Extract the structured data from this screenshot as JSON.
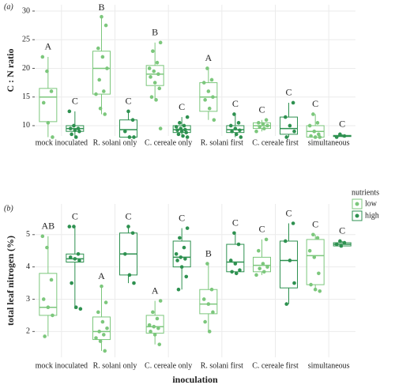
{
  "chart_data": [
    {
      "type": "box",
      "title": "(a)",
      "y_label": "C : N ratio",
      "categories": [
        "mock inoculated",
        "R. solani only",
        "C. cereale only",
        "R. solani first",
        "C. cereale first",
        "simultaneous"
      ],
      "ylim": [
        8.2,
        31.1
      ],
      "yticks": [
        10,
        15,
        20,
        25,
        30
      ],
      "grid": true,
      "series": [
        {
          "name": "low",
          "color": "#7cc77c",
          "boxes": [
            [
              8,
              10.7,
              15,
              16.5,
              22
            ],
            [
              12,
              15.5,
              20,
              23,
              29
            ],
            [
              14.5,
              17,
              19,
              20.5,
              24.5
            ],
            [
              11,
              12.5,
              15,
              17.5,
              20
            ],
            [
              9,
              9.5,
              10,
              10.5,
              11
            ],
            [
              8,
              8,
              9,
              10,
              12
            ]
          ],
          "points": [
            [
              22,
              19.5,
              16,
              14,
              10.5,
              8
            ],
            [
              29,
              27.5,
              23.5,
              22,
              20,
              18,
              16,
              15.5,
              13,
              12
            ],
            [
              24.5,
              23,
              21,
              20,
              19.5,
              19,
              18.5,
              17.5,
              16.5,
              15,
              14.5,
              9.5
            ],
            [
              20,
              18,
              17.5,
              16,
              15,
              14.5,
              13,
              11
            ],
            [
              11,
              10.5,
              10.3,
              10,
              9.8,
              9.5,
              9
            ],
            [
              12,
              10.5,
              10,
              9,
              8.5,
              8.2,
              8,
              8
            ]
          ],
          "letters": [
            "A",
            "B",
            "B",
            "A",
            "C",
            "C"
          ]
        },
        {
          "name": "high",
          "color": "#2e9150",
          "boxes": [
            [
              8,
              9,
              9.5,
              10,
              12.5
            ],
            [
              8,
              8,
              9.3,
              11,
              12.5
            ],
            [
              8,
              8.8,
              9.3,
              10,
              11.5
            ],
            [
              8,
              8.8,
              9.3,
              10,
              12
            ],
            [
              8,
              8.5,
              9.5,
              11.5,
              14
            ],
            [
              8,
              8.1,
              8.2,
              8.3,
              8.5
            ]
          ],
          "points": [
            [
              12.5,
              10,
              9.5,
              9.5,
              9.2,
              9,
              8.5,
              8
            ],
            [
              12.5,
              11,
              9,
              8,
              8
            ],
            [
              11.5,
              10.5,
              10,
              9.8,
              9.5,
              9.3,
              9.2,
              9,
              8.8,
              8.5,
              8.2,
              8
            ],
            [
              12,
              10.5,
              10,
              9.5,
              9.2,
              9,
              8.5,
              8
            ],
            [
              14,
              11.5,
              10,
              9,
              8
            ],
            [
              8.5,
              8.2,
              8
            ]
          ],
          "letters": [
            "C",
            "C",
            "C",
            "C",
            "C",
            "C"
          ]
        }
      ]
    },
    {
      "type": "box",
      "title": "(b)",
      "y_label": "total leaf nitrogen (%)",
      "x_label": "inoculation",
      "legend_title": "nutrients",
      "categories": [
        "mock inoculated",
        "R. solani only",
        "C. cereale only",
        "R. solani first",
        "C. cereale first",
        "simultaneous"
      ],
      "ylim": [
        1.2,
        5.95
      ],
      "yticks": [
        2,
        3,
        4,
        5
      ],
      "grid": true,
      "series": [
        {
          "name": "low",
          "color": "#7cc77c",
          "boxes": [
            [
              1.85,
              2.5,
              2.75,
              3.8,
              4.95
            ],
            [
              1.4,
              1.75,
              2.0,
              2.45,
              3.4
            ],
            [
              1.6,
              1.95,
              2.15,
              2.5,
              2.95
            ],
            [
              2.0,
              2.55,
              2.85,
              3.3,
              4.1
            ],
            [
              3.75,
              3.85,
              4.05,
              4.3,
              4.85
            ],
            [
              3.25,
              3.45,
              4.35,
              4.85,
              5.0
            ]
          ],
          "points": [
            [
              4.95,
              4.6,
              3.6,
              3.0,
              2.75,
              2.5,
              1.85
            ],
            [
              3.4,
              2.9,
              2.6,
              2.3,
              2.1,
              2.0,
              1.9,
              1.8,
              1.7,
              1.4
            ],
            [
              2.95,
              2.6,
              2.4,
              2.2,
              2.15,
              2.1,
              2.0,
              1.9,
              1.6
            ],
            [
              4.1,
              3.3,
              3.0,
              2.85,
              2.6,
              2.3,
              2.0
            ],
            [
              4.85,
              4.5,
              4.1,
              4.0,
              3.95,
              3.85,
              3.75
            ],
            [
              5.0,
              4.9,
              4.5,
              4.3,
              3.8,
              3.45,
              3.3,
              3.25
            ]
          ],
          "letters": [
            "AB",
            "A",
            "A",
            "B",
            "C",
            "C"
          ]
        },
        {
          "name": "high",
          "color": "#2e9150",
          "boxes": [
            [
              2.7,
              4.15,
              4.25,
              4.4,
              5.25
            ],
            [
              3.5,
              3.75,
              4.4,
              5.05,
              5.25
            ],
            [
              3.3,
              4.0,
              4.3,
              4.8,
              5.2
            ],
            [
              3.8,
              3.85,
              4.15,
              4.7,
              5.05
            ],
            [
              2.85,
              3.35,
              4.2,
              4.8,
              5.35
            ],
            [
              4.6,
              4.65,
              4.7,
              4.75,
              4.8
            ]
          ],
          "points": [
            [
              5.25,
              5.25,
              4.4,
              4.3,
              4.25,
              4.2,
              3.5,
              2.75,
              2.7
            ],
            [
              5.25,
              5.05,
              4.4,
              3.75,
              3.5
            ],
            [
              5.2,
              4.9,
              4.6,
              4.4,
              4.3,
              4.25,
              4.2,
              4.0,
              3.7,
              3.3
            ],
            [
              5.05,
              4.7,
              4.2,
              4.1,
              3.9,
              3.85,
              3.8
            ],
            [
              5.35,
              4.8,
              4.2,
              3.5,
              2.85
            ],
            [
              4.8,
              4.75,
              4.7,
              4.65
            ]
          ],
          "letters": [
            "C",
            "C",
            "C",
            "C",
            "C",
            "C"
          ]
        }
      ]
    }
  ]
}
